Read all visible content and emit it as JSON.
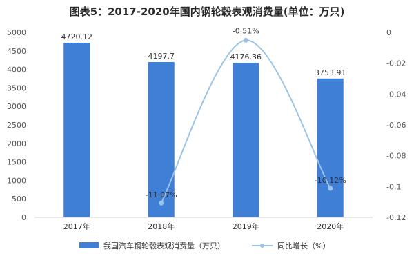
{
  "chart_data": {
    "type": "bar",
    "title": "图表5：2017-2020年国内钢轮毂表观消费量(单位：万只)",
    "categories": [
      "2017年",
      "2018年",
      "2019年",
      "2020年"
    ],
    "series": [
      {
        "name": "我国汽车钢轮毂表观消费量（万只）",
        "type": "bar",
        "axis": "left",
        "values": [
          4720.12,
          4197.7,
          4176.36,
          3753.91
        ],
        "labels": [
          "4720.12",
          "4197.7",
          "4176.36",
          "3753.91"
        ],
        "color": "#3f7fd6"
      },
      {
        "name": "同比增长（%）",
        "type": "line",
        "axis": "right",
        "values": [
          null,
          -0.1107,
          -0.0051,
          -0.1012
        ],
        "labels": [
          "",
          "-11.07%",
          "-0.51%",
          "-10.12%"
        ],
        "color": "#9cc3e6"
      }
    ],
    "y_left": {
      "min": 0,
      "max": 5000,
      "ticks": [
        "0",
        "500",
        "1000",
        "1500",
        "2000",
        "2500",
        "3000",
        "3500",
        "4000",
        "4500",
        "5000"
      ]
    },
    "y_right": {
      "min": -0.12,
      "max": 0,
      "ticks": [
        "0",
        "-0.02",
        "-0.04",
        "-0.06",
        "-0.08",
        "-0.1",
        "-0.12"
      ]
    },
    "legend_position": "bottom",
    "grid": false
  }
}
